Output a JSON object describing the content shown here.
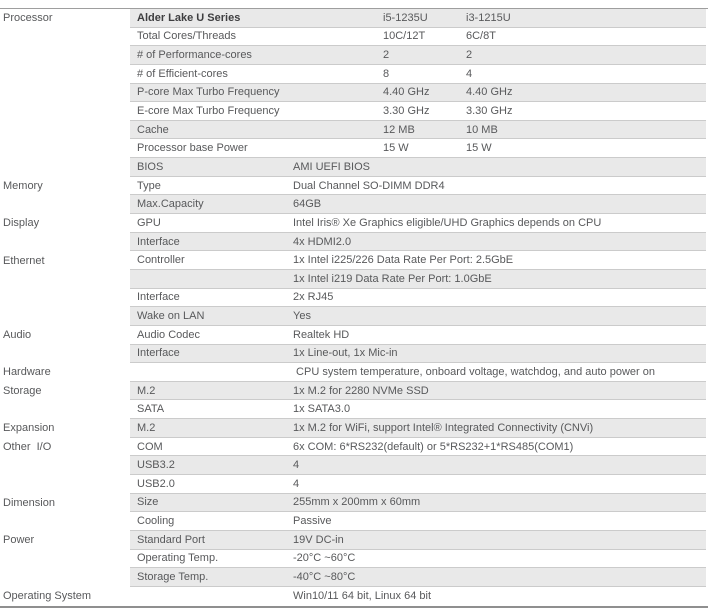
{
  "colors": {
    "row_shade": "#e9e9e9",
    "separator": "#cbcbcb",
    "top_rule": "#9e9e9e",
    "bottom_rule": "#8f8f8f",
    "text": "#58595b",
    "header_text": "#3e3e40"
  },
  "table": {
    "rows": [
      {
        "category": "Processor",
        "label": "Alder Lake U Series",
        "values": [
          "i5-1235U",
          "i3-1215U"
        ],
        "layout": "dual",
        "shaded": true,
        "bold": true
      },
      {
        "category": "",
        "label": "Total Cores/Threads",
        "values": [
          "10C/12T",
          "6C/8T"
        ],
        "layout": "dual",
        "shaded": false
      },
      {
        "category": "",
        "label": "# of Performance-cores",
        "values": [
          "2",
          "2"
        ],
        "layout": "dual",
        "shaded": true
      },
      {
        "category": "",
        "label": "# of Efficient-cores",
        "values": [
          "8",
          "4"
        ],
        "layout": "dual",
        "shaded": false
      },
      {
        "category": "",
        "label": "P-core Max Turbo Frequency",
        "values": [
          "4.40 GHz",
          "4.40 GHz"
        ],
        "layout": "dual",
        "shaded": true
      },
      {
        "category": "",
        "label": "E-core Max Turbo Frequency",
        "values": [
          "3.30 GHz",
          "3.30 GHz"
        ],
        "layout": "dual",
        "shaded": false
      },
      {
        "category": "",
        "label": "Cache",
        "values": [
          "12 MB",
          "10 MB"
        ],
        "layout": "dual",
        "shaded": true
      },
      {
        "category": "",
        "label": "Processor base Power",
        "values": [
          "15 W",
          "15 W"
        ],
        "layout": "dual",
        "shaded": false
      },
      {
        "category": "",
        "label": "BIOS",
        "values": [
          "AMI UEFI BIOS"
        ],
        "layout": "single",
        "shaded": true
      },
      {
        "category": "Memory",
        "label": "Type",
        "values": [
          "Dual Channel SO-DIMM DDR4"
        ],
        "layout": "single",
        "shaded": false
      },
      {
        "category": "",
        "label": "Max.Capacity",
        "values": [
          "64GB"
        ],
        "layout": "single",
        "shaded": true
      },
      {
        "category": "Display",
        "label": "GPU",
        "values": [
          "Intel Iris® Xe Graphics eligible/UHD Graphics depends on CPU"
        ],
        "layout": "single",
        "shaded": false
      },
      {
        "category": "",
        "label": "Interface",
        "values": [
          "4x HDMI2.0"
        ],
        "layout": "single",
        "shaded": true
      },
      {
        "category": "Ethernet",
        "label": "Controller",
        "values": [
          "1x Intel i225/226 Data Rate Per Port: 2.5GbE"
        ],
        "layout": "single",
        "shaded": false
      },
      {
        "category": "",
        "label": "",
        "values": [
          "1x Intel i219 Data Rate Per Port: 1.0GbE"
        ],
        "layout": "single",
        "shaded": true
      },
      {
        "category": "",
        "label": "Interface",
        "values": [
          "2x RJ45"
        ],
        "layout": "single",
        "shaded": false
      },
      {
        "category": "",
        "label": "Wake on LAN",
        "values": [
          "Yes"
        ],
        "layout": "single",
        "shaded": true
      },
      {
        "category": "Audio",
        "label": "Audio Codec",
        "values": [
          "Realtek HD"
        ],
        "layout": "single",
        "shaded": false
      },
      {
        "category": "",
        "label": "Interface",
        "values": [
          "1x Line-out, 1x Mic-in"
        ],
        "layout": "single",
        "shaded": true
      },
      {
        "category": "Hardware",
        "label": "",
        "values": [
          " CPU system temperature, onboard voltage, watchdog, and auto power on"
        ],
        "layout": "single",
        "shaded": false
      },
      {
        "category": "Storage",
        "label": "M.2",
        "values": [
          "1x M.2 for 2280 NVMe SSD"
        ],
        "layout": "single",
        "shaded": true
      },
      {
        "category": "",
        "label": "SATA",
        "values": [
          "1x SATA3.0"
        ],
        "layout": "single",
        "shaded": false
      },
      {
        "category": "Expansion",
        "label": "M.2",
        "values": [
          "1x M.2 for WiFi, support Intel® Integrated Connectivity (CNVi)"
        ],
        "layout": "single",
        "shaded": true
      },
      {
        "category": "Other  I/O",
        "label": "COM",
        "values": [
          "6x COM: 6*RS232(default) or 5*RS232+1*RS485(COM1)"
        ],
        "layout": "single",
        "shaded": false
      },
      {
        "category": "",
        "label": "USB3.2",
        "values": [
          "4"
        ],
        "layout": "single",
        "shaded": true
      },
      {
        "category": "",
        "label": "USB2.0",
        "values": [
          "4"
        ],
        "layout": "single",
        "shaded": false
      },
      {
        "category": "Dimension",
        "label": "Size",
        "values": [
          "255mm x 200mm x 60mm"
        ],
        "layout": "single",
        "shaded": true
      },
      {
        "category": "",
        "label": "Cooling",
        "values": [
          "Passive"
        ],
        "layout": "single",
        "shaded": false
      },
      {
        "category": "Power",
        "label": "Standard Port",
        "values": [
          "19V DC-in"
        ],
        "layout": "single",
        "shaded": true
      },
      {
        "category": "",
        "label": "Operating Temp.",
        "values": [
          "-20°C ~60°C"
        ],
        "layout": "single",
        "shaded": false
      },
      {
        "category": "",
        "label": "Storage Temp.",
        "values": [
          "-40°C ~80°C"
        ],
        "layout": "single",
        "shaded": true
      },
      {
        "category": "Operating System",
        "label": "",
        "values": [
          "Win10/11 64 bit, Linux 64 bit"
        ],
        "layout": "single",
        "shaded": false
      }
    ]
  }
}
